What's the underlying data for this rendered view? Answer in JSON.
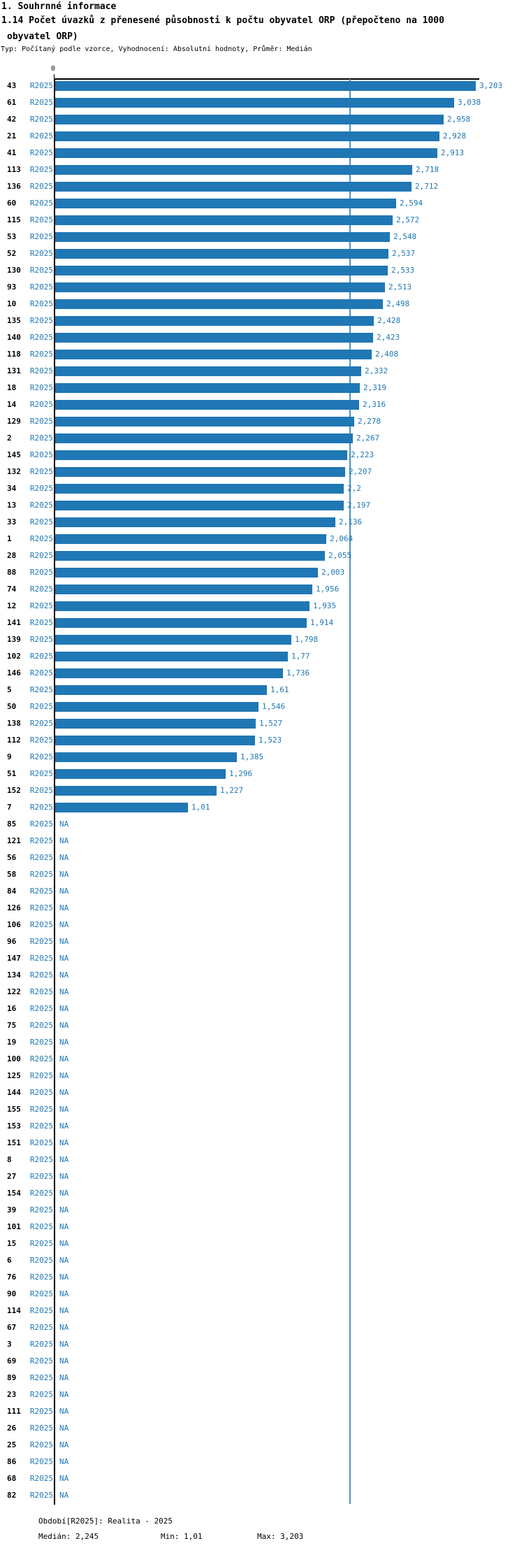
{
  "title": {
    "section": "1. Souhrnné informace",
    "heading_line1": "1.14 Počet úvazků z přenesené působnosti k počtu obyvatel ORP (přepočteno na 1000",
    "heading_line2": "obyvatel ORP)",
    "meta": "Typ: Počítaný podle vzorce, Vyhodnocení: Absolutní hodnoty, Průměr: Medián"
  },
  "chart_data": {
    "type": "bar",
    "orientation": "horizontal",
    "series_name": "R2025",
    "x_axis": {
      "zero_label": "0",
      "min": 0,
      "max": 3.203,
      "gridlines": false
    },
    "median_line_value": 2.245,
    "legend_position": "none",
    "rows": [
      {
        "id": "43",
        "value": 3.203,
        "label": "3,203"
      },
      {
        "id": "61",
        "value": 3.038,
        "label": "3,038"
      },
      {
        "id": "42",
        "value": 2.958,
        "label": "2,958"
      },
      {
        "id": "21",
        "value": 2.928,
        "label": "2,928"
      },
      {
        "id": "41",
        "value": 2.913,
        "label": "2,913"
      },
      {
        "id": "113",
        "value": 2.718,
        "label": "2,718"
      },
      {
        "id": "136",
        "value": 2.712,
        "label": "2,712"
      },
      {
        "id": "60",
        "value": 2.594,
        "label": "2,594"
      },
      {
        "id": "115",
        "value": 2.572,
        "label": "2,572"
      },
      {
        "id": "53",
        "value": 2.548,
        "label": "2,548"
      },
      {
        "id": "52",
        "value": 2.537,
        "label": "2,537"
      },
      {
        "id": "130",
        "value": 2.533,
        "label": "2,533"
      },
      {
        "id": "93",
        "value": 2.513,
        "label": "2,513"
      },
      {
        "id": "10",
        "value": 2.498,
        "label": "2,498"
      },
      {
        "id": "135",
        "value": 2.428,
        "label": "2,428"
      },
      {
        "id": "140",
        "value": 2.423,
        "label": "2,423"
      },
      {
        "id": "118",
        "value": 2.408,
        "label": "2,408"
      },
      {
        "id": "131",
        "value": 2.332,
        "label": "2,332"
      },
      {
        "id": "18",
        "value": 2.319,
        "label": "2,319"
      },
      {
        "id": "14",
        "value": 2.316,
        "label": "2,316"
      },
      {
        "id": "129",
        "value": 2.278,
        "label": "2,278"
      },
      {
        "id": "2",
        "value": 2.267,
        "label": "2,267"
      },
      {
        "id": "145",
        "value": 2.223,
        "label": "2,223"
      },
      {
        "id": "132",
        "value": 2.207,
        "label": "2,207"
      },
      {
        "id": "34",
        "value": 2.2,
        "label": "2,2"
      },
      {
        "id": "13",
        "value": 2.197,
        "label": "2,197"
      },
      {
        "id": "33",
        "value": 2.136,
        "label": "2,136"
      },
      {
        "id": "1",
        "value": 2.064,
        "label": "2,064"
      },
      {
        "id": "28",
        "value": 2.055,
        "label": "2,055"
      },
      {
        "id": "88",
        "value": 2.003,
        "label": "2,003"
      },
      {
        "id": "74",
        "value": 1.956,
        "label": "1,956"
      },
      {
        "id": "12",
        "value": 1.935,
        "label": "1,935"
      },
      {
        "id": "141",
        "value": 1.914,
        "label": "1,914"
      },
      {
        "id": "139",
        "value": 1.798,
        "label": "1,798"
      },
      {
        "id": "102",
        "value": 1.77,
        "label": "1,77"
      },
      {
        "id": "146",
        "value": 1.736,
        "label": "1,736"
      },
      {
        "id": "5",
        "value": 1.61,
        "label": "1,61"
      },
      {
        "id": "50",
        "value": 1.546,
        "label": "1,546"
      },
      {
        "id": "138",
        "value": 1.527,
        "label": "1,527"
      },
      {
        "id": "112",
        "value": 1.523,
        "label": "1,523"
      },
      {
        "id": "9",
        "value": 1.385,
        "label": "1,385"
      },
      {
        "id": "51",
        "value": 1.296,
        "label": "1,296"
      },
      {
        "id": "152",
        "value": 1.227,
        "label": "1,227"
      },
      {
        "id": "7",
        "value": 1.01,
        "label": "1,01"
      },
      {
        "id": "85",
        "value": null,
        "label": "NA"
      },
      {
        "id": "121",
        "value": null,
        "label": "NA"
      },
      {
        "id": "56",
        "value": null,
        "label": "NA"
      },
      {
        "id": "58",
        "value": null,
        "label": "NA"
      },
      {
        "id": "84",
        "value": null,
        "label": "NA"
      },
      {
        "id": "126",
        "value": null,
        "label": "NA"
      },
      {
        "id": "106",
        "value": null,
        "label": "NA"
      },
      {
        "id": "96",
        "value": null,
        "label": "NA"
      },
      {
        "id": "147",
        "value": null,
        "label": "NA"
      },
      {
        "id": "134",
        "value": null,
        "label": "NA"
      },
      {
        "id": "122",
        "value": null,
        "label": "NA"
      },
      {
        "id": "16",
        "value": null,
        "label": "NA"
      },
      {
        "id": "75",
        "value": null,
        "label": "NA"
      },
      {
        "id": "19",
        "value": null,
        "label": "NA"
      },
      {
        "id": "100",
        "value": null,
        "label": "NA"
      },
      {
        "id": "125",
        "value": null,
        "label": "NA"
      },
      {
        "id": "144",
        "value": null,
        "label": "NA"
      },
      {
        "id": "155",
        "value": null,
        "label": "NA"
      },
      {
        "id": "153",
        "value": null,
        "label": "NA"
      },
      {
        "id": "151",
        "value": null,
        "label": "NA"
      },
      {
        "id": "8",
        "value": null,
        "label": "NA"
      },
      {
        "id": "27",
        "value": null,
        "label": "NA"
      },
      {
        "id": "154",
        "value": null,
        "label": "NA"
      },
      {
        "id": "39",
        "value": null,
        "label": "NA"
      },
      {
        "id": "101",
        "value": null,
        "label": "NA"
      },
      {
        "id": "15",
        "value": null,
        "label": "NA"
      },
      {
        "id": "6",
        "value": null,
        "label": "NA"
      },
      {
        "id": "76",
        "value": null,
        "label": "NA"
      },
      {
        "id": "90",
        "value": null,
        "label": "NA"
      },
      {
        "id": "114",
        "value": null,
        "label": "NA"
      },
      {
        "id": "67",
        "value": null,
        "label": "NA"
      },
      {
        "id": "3",
        "value": null,
        "label": "NA"
      },
      {
        "id": "69",
        "value": null,
        "label": "NA"
      },
      {
        "id": "89",
        "value": null,
        "label": "NA"
      },
      {
        "id": "23",
        "value": null,
        "label": "NA"
      },
      {
        "id": "111",
        "value": null,
        "label": "NA"
      },
      {
        "id": "26",
        "value": null,
        "label": "NA"
      },
      {
        "id": "25",
        "value": null,
        "label": "NA"
      },
      {
        "id": "86",
        "value": null,
        "label": "NA"
      },
      {
        "id": "68",
        "value": null,
        "label": "NA"
      },
      {
        "id": "82",
        "value": null,
        "label": "NA"
      }
    ]
  },
  "footer": {
    "period": "Období[R2025]: Realita - 2025",
    "median": "Medián: 2,245",
    "min": "Min: 1,01",
    "max": "Max: 3,203"
  },
  "colors": {
    "bar": "#1f77b4",
    "blue_text": "#1f77b4",
    "median_line": "#4a90c2",
    "axis": "#000000"
  }
}
